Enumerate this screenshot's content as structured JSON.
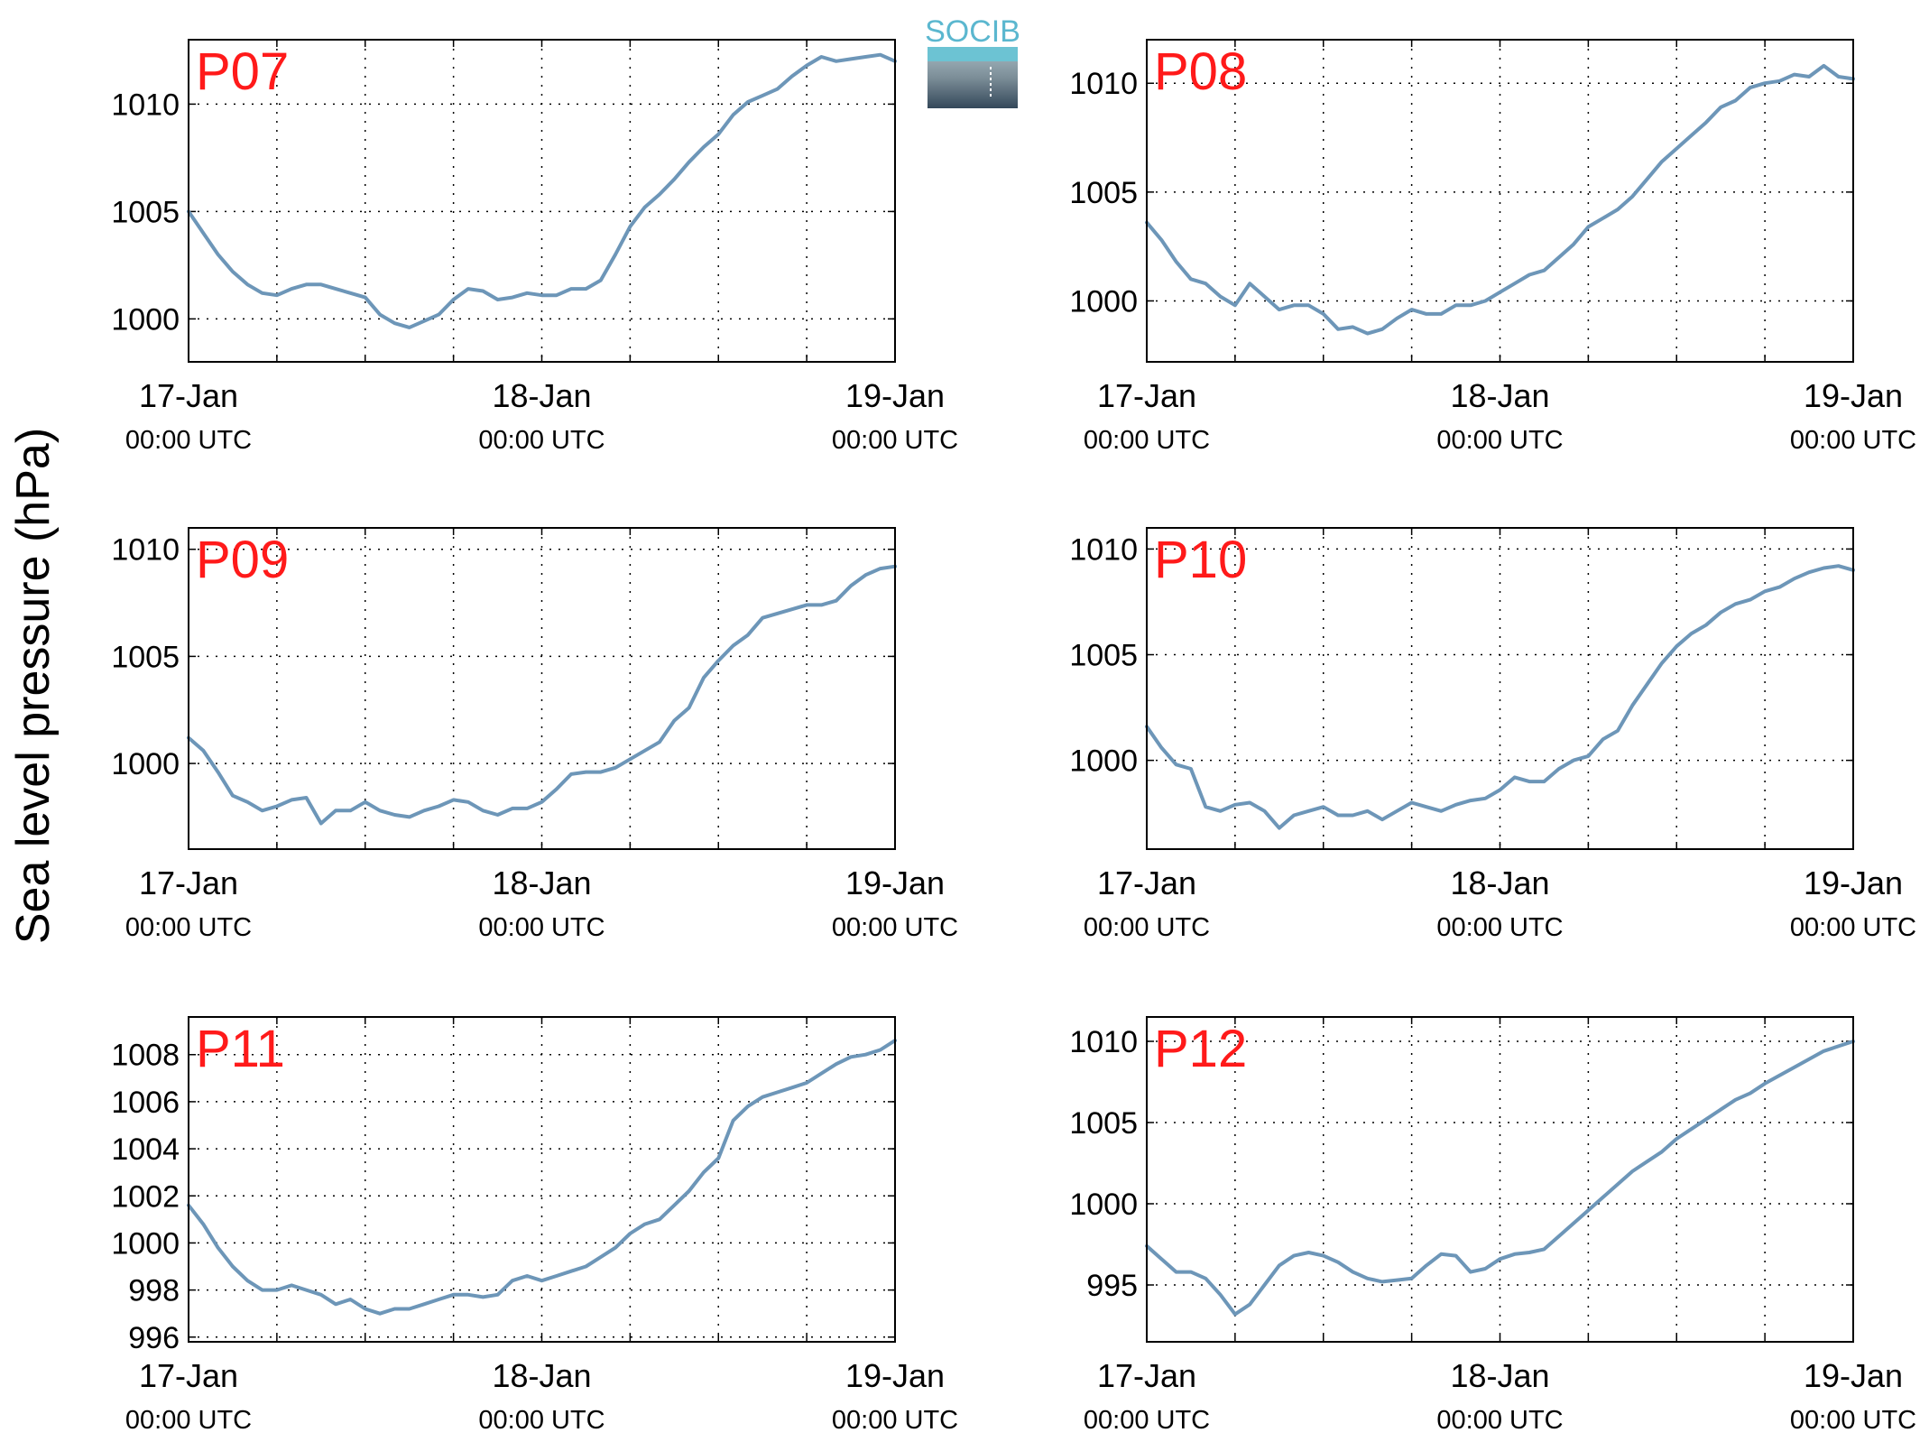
{
  "figure": {
    "ylabel": "Sea level pressure (hPa)",
    "logo_text": "SOCIB",
    "x_ticks": [
      {
        "day": "17-Jan",
        "time": "00:00 UTC"
      },
      {
        "day": "18-Jan",
        "time": "00:00 UTC"
      },
      {
        "day": "19-Jan",
        "time": "00:00 UTC"
      }
    ],
    "colors": {
      "line": "#6d96b8",
      "title": "#ff1a1a",
      "axis": "#000000",
      "grid": "#000000"
    },
    "grid": true
  },
  "chart_data": [
    {
      "type": "line",
      "title": "P07",
      "ylim": [
        998,
        1013
      ],
      "yticks": [
        1000,
        1005,
        1010
      ],
      "xlim": [
        0,
        48
      ],
      "series": [
        {
          "x": [
            0,
            1,
            2,
            3,
            4,
            5,
            6,
            7,
            8,
            9,
            10,
            11,
            12,
            13,
            14,
            15,
            16,
            17,
            18,
            19,
            20,
            21,
            22,
            23,
            24,
            25,
            26,
            27,
            28,
            29,
            30,
            31,
            32,
            33,
            34,
            35,
            36,
            37,
            38,
            39,
            40,
            41,
            42,
            43,
            44,
            45,
            46,
            47,
            48
          ],
          "y": [
            1005,
            1004,
            1003,
            1002.2,
            1001.6,
            1001.2,
            1001.1,
            1001.4,
            1001.6,
            1001.6,
            1001.4,
            1001.2,
            1001.0,
            1000.2,
            999.8,
            999.6,
            999.9,
            1000.2,
            1000.9,
            1001.4,
            1001.3,
            1000.9,
            1001.0,
            1001.2,
            1001.1,
            1001.1,
            1001.4,
            1001.4,
            1001.8,
            1003.0,
            1004.3,
            1005.2,
            1005.8,
            1006.5,
            1007.3,
            1008.0,
            1008.6,
            1009.5,
            1010.1,
            1010.4,
            1010.7,
            1011.3,
            1011.8,
            1012.2,
            1012.0,
            1012.1,
            1012.2,
            1012.3,
            1012.0
          ]
        }
      ]
    },
    {
      "type": "line",
      "title": "P08",
      "ylim": [
        997.2,
        1012
      ],
      "yticks": [
        1000,
        1005,
        1010
      ],
      "xlim": [
        0,
        48
      ],
      "series": [
        {
          "x": [
            0,
            1,
            2,
            3,
            4,
            5,
            6,
            7,
            8,
            9,
            10,
            11,
            12,
            13,
            14,
            15,
            16,
            17,
            18,
            19,
            20,
            21,
            22,
            23,
            24,
            25,
            26,
            27,
            28,
            29,
            30,
            31,
            32,
            33,
            34,
            35,
            36,
            37,
            38,
            39,
            40,
            41,
            42,
            43,
            44,
            45,
            46,
            47,
            48
          ],
          "y": [
            1003.6,
            1002.8,
            1001.8,
            1001.0,
            1000.8,
            1000.2,
            999.8,
            1000.8,
            1000.2,
            999.6,
            999.8,
            999.8,
            999.4,
            998.7,
            998.8,
            998.5,
            998.7,
            999.2,
            999.6,
            999.4,
            999.4,
            999.8,
            999.8,
            1000.0,
            1000.4,
            1000.8,
            1001.2,
            1001.4,
            1002.0,
            1002.6,
            1003.4,
            1003.8,
            1004.2,
            1004.8,
            1005.6,
            1006.4,
            1007.0,
            1007.6,
            1008.2,
            1008.9,
            1009.2,
            1009.8,
            1010.0,
            1010.1,
            1010.4,
            1010.3,
            1010.8,
            1010.3,
            1010.2
          ]
        }
      ]
    },
    {
      "type": "line",
      "title": "P09",
      "ylim": [
        996,
        1011
      ],
      "yticks": [
        1000,
        1005,
        1010
      ],
      "xlim": [
        0,
        48
      ],
      "series": [
        {
          "x": [
            0,
            1,
            2,
            3,
            4,
            5,
            6,
            7,
            8,
            9,
            10,
            11,
            12,
            13,
            14,
            15,
            16,
            17,
            18,
            19,
            20,
            21,
            22,
            23,
            24,
            25,
            26,
            27,
            28,
            29,
            30,
            31,
            32,
            33,
            34,
            35,
            36,
            37,
            38,
            39,
            40,
            41,
            42,
            43,
            44,
            45,
            46,
            47,
            48
          ],
          "y": [
            1001.2,
            1000.6,
            999.6,
            998.5,
            998.2,
            997.8,
            998.0,
            998.3,
            998.4,
            997.2,
            997.8,
            997.8,
            998.2,
            997.8,
            997.6,
            997.5,
            997.8,
            998.0,
            998.3,
            998.2,
            997.8,
            997.6,
            997.9,
            997.9,
            998.2,
            998.8,
            999.5,
            999.6,
            999.6,
            999.8,
            1000.2,
            1000.6,
            1001.0,
            1002.0,
            1002.6,
            1004.0,
            1004.8,
            1005.5,
            1006.0,
            1006.8,
            1007.0,
            1007.2,
            1007.4,
            1007.4,
            1007.6,
            1008.3,
            1008.8,
            1009.1,
            1009.2
          ]
        }
      ]
    },
    {
      "type": "line",
      "title": "P10",
      "ylim": [
        995.8,
        1011
      ],
      "yticks": [
        1000,
        1005,
        1010
      ],
      "xlim": [
        0,
        48
      ],
      "series": [
        {
          "x": [
            0,
            1,
            2,
            3,
            4,
            5,
            6,
            7,
            8,
            9,
            10,
            11,
            12,
            13,
            14,
            15,
            16,
            17,
            18,
            19,
            20,
            21,
            22,
            23,
            24,
            25,
            26,
            27,
            28,
            29,
            30,
            31,
            32,
            33,
            34,
            35,
            36,
            37,
            38,
            39,
            40,
            41,
            42,
            43,
            44,
            45,
            46,
            47,
            48
          ],
          "y": [
            1001.6,
            1000.6,
            999.8,
            999.6,
            997.8,
            997.6,
            997.9,
            998.0,
            997.6,
            996.8,
            997.4,
            997.6,
            997.8,
            997.4,
            997.4,
            997.6,
            997.2,
            997.6,
            998.0,
            997.8,
            997.6,
            997.9,
            998.1,
            998.2,
            998.6,
            999.2,
            999.0,
            999.0,
            999.6,
            1000.0,
            1000.2,
            1001.0,
            1001.4,
            1002.6,
            1003.6,
            1004.6,
            1005.4,
            1006.0,
            1006.4,
            1007.0,
            1007.4,
            1007.6,
            1008.0,
            1008.2,
            1008.6,
            1008.9,
            1009.1,
            1009.2,
            1009.0
          ]
        }
      ]
    },
    {
      "type": "line",
      "title": "P11",
      "ylim": [
        995.8,
        1009.6
      ],
      "yticks": [
        996,
        998,
        1000,
        1002,
        1004,
        1006,
        1008
      ],
      "xlim": [
        0,
        48
      ],
      "series": [
        {
          "x": [
            0,
            1,
            2,
            3,
            4,
            5,
            6,
            7,
            8,
            9,
            10,
            11,
            12,
            13,
            14,
            15,
            16,
            17,
            18,
            19,
            20,
            21,
            22,
            23,
            24,
            25,
            26,
            27,
            28,
            29,
            30,
            31,
            32,
            33,
            34,
            35,
            36,
            37,
            38,
            39,
            40,
            41,
            42,
            43,
            44,
            45,
            46,
            47,
            48
          ],
          "y": [
            1001.6,
            1000.8,
            999.8,
            999.0,
            998.4,
            998.0,
            998.0,
            998.2,
            998.0,
            997.8,
            997.4,
            997.6,
            997.2,
            997.0,
            997.2,
            997.2,
            997.4,
            997.6,
            997.8,
            997.8,
            997.7,
            997.8,
            998.4,
            998.6,
            998.4,
            998.6,
            998.8,
            999.0,
            999.4,
            999.8,
            1000.4,
            1000.8,
            1001.0,
            1001.6,
            1002.2,
            1003.0,
            1003.6,
            1005.2,
            1005.8,
            1006.2,
            1006.4,
            1006.6,
            1006.8,
            1007.2,
            1007.6,
            1007.9,
            1008.0,
            1008.2,
            1008.6
          ]
        }
      ]
    },
    {
      "type": "line",
      "title": "P12",
      "ylim": [
        991.5,
        1011.5
      ],
      "yticks": [
        995,
        1000,
        1005,
        1010
      ],
      "xlim": [
        0,
        48
      ],
      "series": [
        {
          "x": [
            0,
            1,
            2,
            3,
            4,
            5,
            6,
            7,
            8,
            9,
            10,
            11,
            12,
            13,
            14,
            15,
            16,
            17,
            18,
            19,
            20,
            21,
            22,
            23,
            24,
            25,
            26,
            27,
            28,
            29,
            30,
            31,
            32,
            33,
            34,
            35,
            36,
            37,
            38,
            39,
            40,
            41,
            42,
            43,
            44,
            45,
            46,
            47,
            48
          ],
          "y": [
            997.4,
            996.6,
            995.8,
            995.8,
            995.4,
            994.4,
            993.2,
            993.8,
            995.0,
            996.2,
            996.8,
            997.0,
            996.8,
            996.4,
            995.8,
            995.4,
            995.2,
            995.3,
            995.4,
            996.2,
            996.9,
            996.8,
            995.8,
            996.0,
            996.6,
            996.9,
            997.0,
            997.2,
            998.0,
            998.8,
            999.6,
            1000.4,
            1001.2,
            1002.0,
            1002.6,
            1003.2,
            1004.0,
            1004.6,
            1005.2,
            1005.8,
            1006.4,
            1006.8,
            1007.4,
            1007.9,
            1008.4,
            1008.9,
            1009.4,
            1009.7,
            1010.0
          ]
        }
      ]
    }
  ]
}
